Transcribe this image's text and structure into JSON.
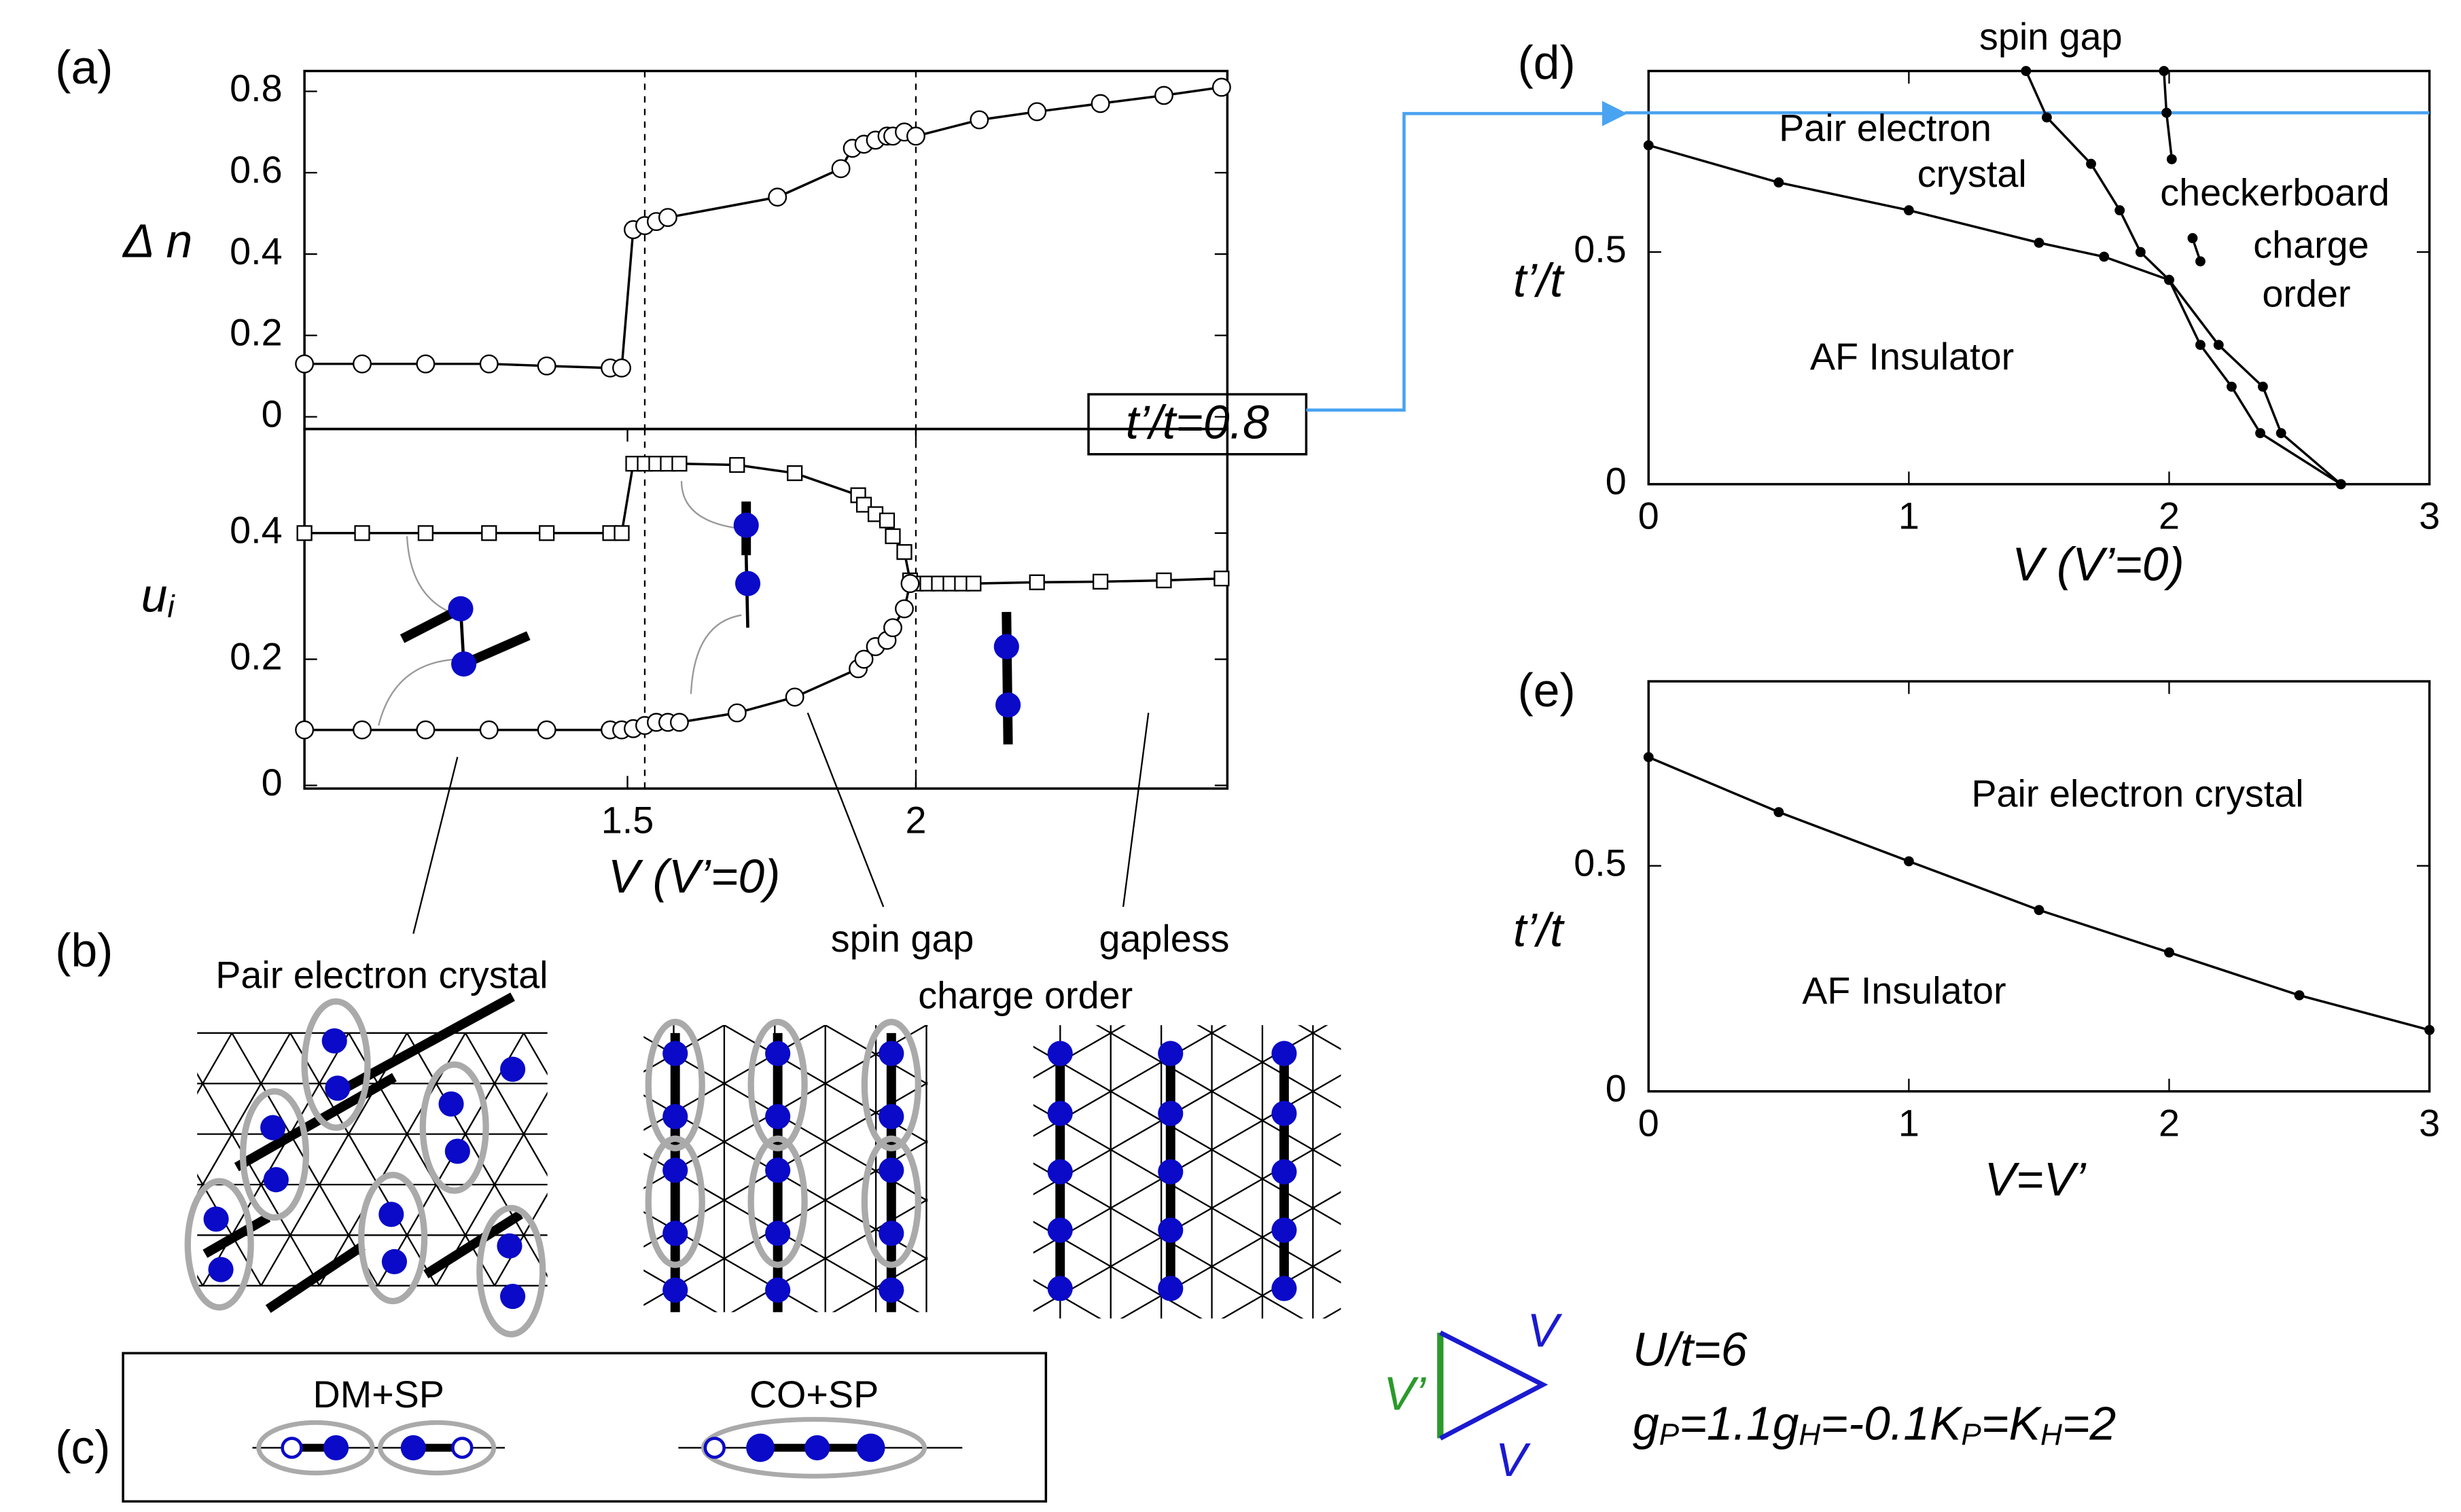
{
  "chart_data": [
    {
      "type": "line",
      "panel": "(a)",
      "y_label": "Δ n",
      "xlim": [
        0.94,
        2.54
      ],
      "ylim": [
        -0.03,
        0.85
      ],
      "yticks": [
        0,
        0.2,
        0.4,
        0.6,
        0.8
      ],
      "vlines": [
        1.53,
        2
      ],
      "series": [
        {
          "marker": "circle",
          "x": [
            0.94,
            1.04,
            1.15,
            1.26,
            1.36,
            1.47,
            1.49,
            1.51,
            1.53,
            1.55,
            1.57,
            1.76,
            1.87,
            1.89,
            1.91,
            1.93,
            1.95,
            1.96,
            1.98,
            2.0,
            2.11,
            2.21,
            2.32,
            2.43,
            2.53
          ],
          "values": [
            0.13,
            0.13,
            0.13,
            0.13,
            0.125,
            0.12,
            0.12,
            0.46,
            0.47,
            0.48,
            0.49,
            0.54,
            0.61,
            0.66,
            0.67,
            0.68,
            0.69,
            0.69,
            0.7,
            0.69,
            0.73,
            0.75,
            0.77,
            0.79,
            0.81
          ]
        }
      ]
    },
    {
      "type": "line",
      "y_label": "u",
      "y_label_sub": "i",
      "x_label": "V (V’=0)",
      "xlim": [
        0.94,
        2.54
      ],
      "ylim": [
        -0.005,
        0.565
      ],
      "yticks": [
        0,
        0.2,
        0.4
      ],
      "xticks": [
        1.5,
        2
      ],
      "vlines": [
        1.53,
        2
      ],
      "series": [
        {
          "marker": "square",
          "x": [
            0.94,
            1.04,
            1.15,
            1.26,
            1.36,
            1.47,
            1.49,
            1.51,
            1.53,
            1.55,
            1.57,
            1.59,
            1.69,
            1.79,
            1.9,
            1.91,
            1.93,
            1.95,
            1.96,
            1.98,
            1.99,
            2.0,
            2.02,
            2.04,
            2.06,
            2.08,
            2.1,
            2.21,
            2.32,
            2.43,
            2.53
          ],
          "values": [
            0.4,
            0.4,
            0.4,
            0.4,
            0.4,
            0.4,
            0.4,
            0.51,
            0.51,
            0.51,
            0.51,
            0.51,
            0.508,
            0.495,
            0.46,
            0.445,
            0.43,
            0.42,
            0.395,
            0.37,
            0.325,
            0.32,
            0.32,
            0.32,
            0.32,
            0.32,
            0.32,
            0.322,
            0.323,
            0.325,
            0.328
          ]
        },
        {
          "marker": "circle",
          "x": [
            0.94,
            1.04,
            1.15,
            1.26,
            1.36,
            1.47,
            1.49,
            1.51,
            1.53,
            1.55,
            1.57,
            1.59,
            1.69,
            1.79,
            1.9,
            1.91,
            1.93,
            1.95,
            1.96,
            1.98,
            1.99
          ],
          "values": [
            0.088,
            0.088,
            0.088,
            0.088,
            0.088,
            0.088,
            0.088,
            0.09,
            0.095,
            0.1,
            0.1,
            0.1,
            0.115,
            0.14,
            0.185,
            0.2,
            0.22,
            0.23,
            0.25,
            0.28,
            0.32
          ]
        }
      ]
    },
    {
      "type": "line",
      "panel": "(d)",
      "x_label": "V (V’=0)",
      "y_label": "t’/t",
      "xlim": [
        0,
        3
      ],
      "ylim": [
        0,
        0.89
      ],
      "xticks": [
        0,
        1,
        2,
        3
      ],
      "yticks": [
        0,
        0.5
      ],
      "hline": 0.8,
      "hline_color": "#4aa3f0",
      "regions": [
        "spin gap",
        "Pair electron",
        "crystal",
        "checkerboard",
        "charge",
        "order",
        "AF Insulator"
      ],
      "series": [
        {
          "marker": "dot",
          "x": [
            0,
            0.5,
            1,
            1.5,
            1.75,
            2,
            2.12,
            2.24,
            2.35,
            2.66
          ],
          "values": [
            0.73,
            0.65,
            0.59,
            0.52,
            0.49,
            0.44,
            0.3,
            0.21,
            0.11,
            0
          ]
        },
        {
          "marker": "dot",
          "x": [
            1.45,
            1.53,
            1.7,
            1.81,
            1.89,
            2,
            2.19,
            2.36,
            2.43,
            2.66
          ],
          "values": [
            0.89,
            0.79,
            0.69,
            0.59,
            0.5,
            0.44,
            0.3,
            0.21,
            0.11,
            0
          ]
        },
        {
          "marker": "dot",
          "x": [
            1.98,
            1.99,
            2.01
          ],
          "values": [
            0.89,
            0.8,
            0.7
          ]
        },
        {
          "marker": "dot",
          "x": [
            2.09,
            2.12
          ],
          "values": [
            0.53,
            0.48
          ]
        }
      ]
    },
    {
      "type": "line",
      "panel": "(e)",
      "x_label": "V=V’",
      "y_label": "t’/t",
      "xlim": [
        0,
        3
      ],
      "ylim": [
        0,
        0.909
      ],
      "xticks": [
        0,
        1,
        2,
        3
      ],
      "yticks": [
        0,
        0.5
      ],
      "regions": [
        "Pair electron crystal",
        "AF Insulator"
      ],
      "series": [
        {
          "marker": "dot",
          "x": [
            0,
            0.5,
            1,
            1.5,
            2,
            2.5,
            3
          ],
          "values": [
            0.741,
            0.619,
            0.51,
            0.402,
            0.308,
            0.213,
            0.136
          ]
        }
      ]
    }
  ],
  "callout": "t’/t=0.8",
  "panel_b": {
    "label": "(b)",
    "titles": [
      "Pair electron crystal",
      "spin gap",
      "charge order",
      "gapless"
    ]
  },
  "panel_c": {
    "label": "(c)",
    "items": [
      "DM+SP",
      "CO+SP"
    ]
  },
  "params": {
    "bonds": [
      "V",
      "V’",
      "V"
    ],
    "U": "U/t=6",
    "terms": [
      {
        "sym": "g",
        "sub": "P",
        "rest": "=1.1"
      },
      {
        "sym": "g",
        "sub": "H",
        "rest": "=-0.1"
      },
      {
        "sym": "K",
        "sub": "P",
        "rest": "=K"
      },
      {
        "sym": "",
        "sub": "H",
        "rest": "=2"
      }
    ]
  }
}
